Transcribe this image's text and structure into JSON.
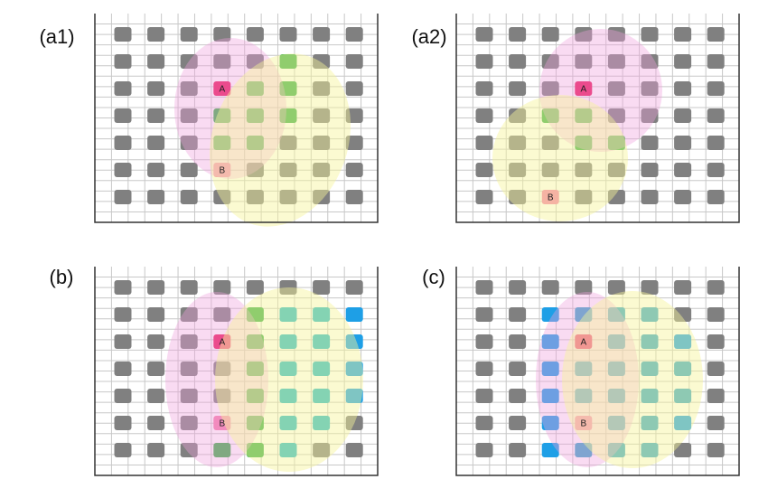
{
  "panels": [
    {
      "label": "(a1)",
      "a": "A",
      "b": "B"
    },
    {
      "label": "(a2)",
      "a": "A",
      "b": "B"
    },
    {
      "label": "(b)",
      "a": "A",
      "b": "B"
    },
    {
      "label": "(c)",
      "a": "A",
      "b": "B"
    }
  ]
}
